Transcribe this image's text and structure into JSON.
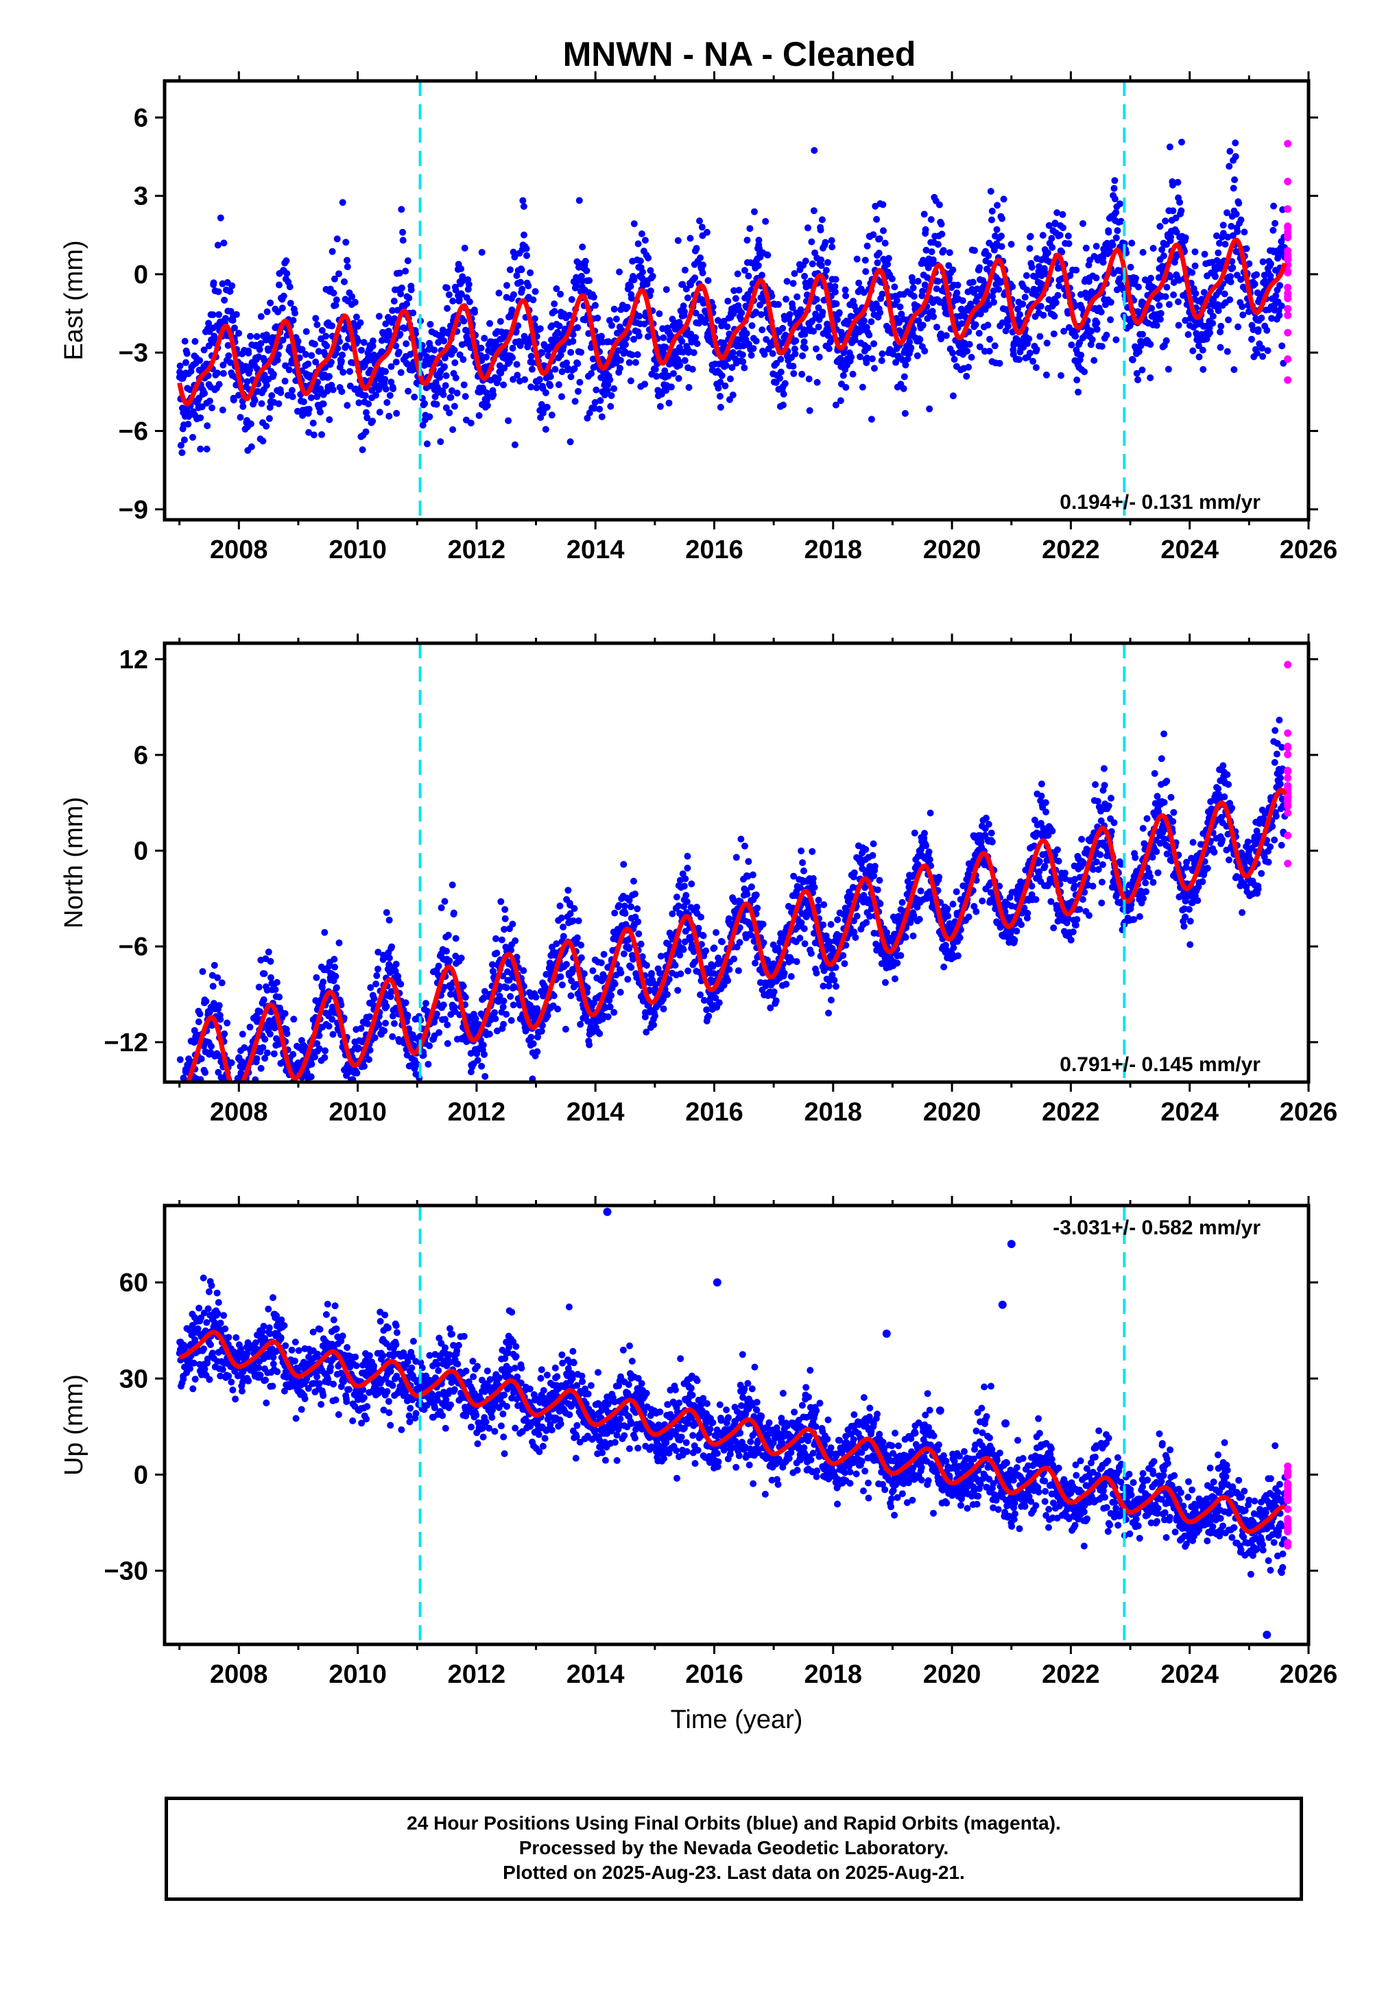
{
  "title": "MNWN  - NA - Cleaned",
  "footer": {
    "line1": "24 Hour Positions Using Final Orbits (blue) and Rapid Orbits (magenta).",
    "line2": "Processed by the Nevada Geodetic Laboratory.",
    "line3": "Plotted on 2025-Aug-23. Last data on 2025-Aug-21."
  },
  "colors": {
    "final_orbits": "#0000ff",
    "rapid_orbits": "#ff00ff",
    "model": "#ff0000",
    "events": "#00e5ee"
  },
  "chart_data": [
    {
      "type": "scatter",
      "panel": "east",
      "ylabel": "East (mm)",
      "xlabel": "",
      "xlim": [
        2006.75,
        2026.0
      ],
      "ylim": [
        -9.4,
        7.4
      ],
      "xticks": [
        2008,
        2010,
        2012,
        2014,
        2016,
        2018,
        2020,
        2022,
        2024,
        2026
      ],
      "yticks": [
        -9,
        -6,
        -3,
        0,
        3,
        6
      ],
      "rate": "0.194+/- 0.131 mm/yr",
      "rate_position": "bottom-right",
      "events": [
        2011.05,
        2022.9
      ],
      "data_range": [
        2007.0,
        2025.6
      ],
      "rapid_range": [
        2025.55,
        2025.65
      ],
      "model": {
        "offset": -1.9,
        "trend": 0.194,
        "annual_amp": 1.2,
        "annual_phase": 0.72,
        "semiannual_amp": 0.45,
        "noise": 1.0
      },
      "series": [
        {
          "name": "Final Orbits",
          "color": "#0000ff",
          "style": "points"
        },
        {
          "name": "Rapid Orbits",
          "color": "#ff00ff",
          "style": "points"
        },
        {
          "name": "Model",
          "color": "#ff0000",
          "style": "line"
        }
      ]
    },
    {
      "type": "scatter",
      "panel": "north",
      "ylabel": "North (mm)",
      "xlabel": "",
      "xlim": [
        2006.75,
        2026.0
      ],
      "ylim": [
        -14.5,
        13.0
      ],
      "xticks": [
        2008,
        2010,
        2012,
        2014,
        2016,
        2018,
        2020,
        2022,
        2024,
        2026
      ],
      "yticks": [
        -12,
        -6,
        0,
        6,
        12
      ],
      "rate": "0.791+/- 0.145 mm/yr",
      "rate_position": "bottom-right",
      "events": [
        2011.05,
        2022.9
      ],
      "data_range": [
        2007.0,
        2025.6
      ],
      "rapid_range": [
        2025.55,
        2025.65
      ],
      "model": {
        "offset": -6.3,
        "trend": 0.791,
        "annual_amp": 2.4,
        "annual_phase": 0.5,
        "semiannual_amp": 0.3,
        "noise": 1.1
      },
      "series": [
        {
          "name": "Final Orbits",
          "color": "#0000ff",
          "style": "points"
        },
        {
          "name": "Rapid Orbits",
          "color": "#ff00ff",
          "style": "points"
        },
        {
          "name": "Model",
          "color": "#ff0000",
          "style": "line"
        }
      ]
    },
    {
      "type": "scatter",
      "panel": "up",
      "ylabel": "Up (mm)",
      "xlabel": "Time (year)",
      "xlim": [
        2006.75,
        2026.0
      ],
      "ylim": [
        -53,
        84
      ],
      "xticks": [
        2008,
        2010,
        2012,
        2014,
        2016,
        2018,
        2020,
        2022,
        2024,
        2026
      ],
      "yticks": [
        -30,
        0,
        30,
        60
      ],
      "rate": "-3.031+/- 0.582 mm/yr",
      "rate_position": "top-right",
      "events": [
        2011.05,
        2022.9
      ],
      "data_range": [
        2007.0,
        2025.6
      ],
      "rapid_range": [
        2025.55,
        2025.65
      ],
      "model": {
        "offset": 14.0,
        "trend": -3.031,
        "annual_amp": 4.5,
        "annual_phase": 0.55,
        "semiannual_amp": 0.8,
        "noise": 5.0
      },
      "outliers": [
        [
          2014.2,
          82
        ],
        [
          2016.05,
          60
        ],
        [
          2018.9,
          44
        ],
        [
          2020.85,
          53
        ],
        [
          2021.0,
          72
        ],
        [
          2019.8,
          20
        ],
        [
          2020.9,
          16
        ],
        [
          2025.3,
          -50
        ]
      ],
      "series": [
        {
          "name": "Final Orbits",
          "color": "#0000ff",
          "style": "points"
        },
        {
          "name": "Rapid Orbits",
          "color": "#ff00ff",
          "style": "points"
        },
        {
          "name": "Model",
          "color": "#ff0000",
          "style": "line"
        }
      ]
    }
  ]
}
